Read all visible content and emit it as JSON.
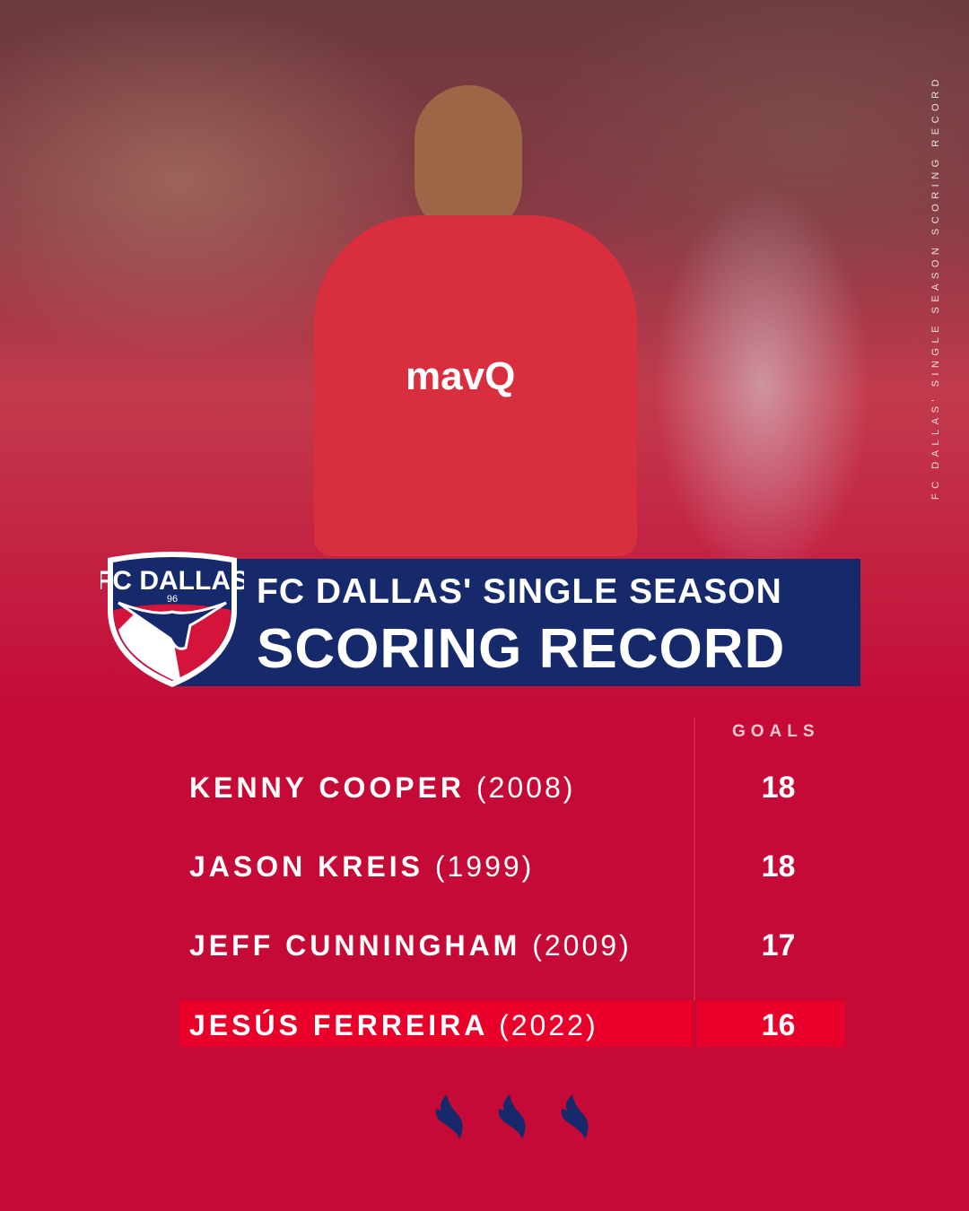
{
  "photo": {
    "sponsor": "mavQ"
  },
  "side_text": "FC DALLAS' SINGLE SEASON SCORING RECORD",
  "logo": {
    "text": "FC DALLAS",
    "year": "96"
  },
  "title": {
    "line1": "FC DALLAS' SINGLE SEASON",
    "line2": "SCORING RECORD"
  },
  "table": {
    "goals_header": "GOALS",
    "rows": [
      {
        "name": "KENNY COOPER",
        "year": "(2008)",
        "goals": "18"
      },
      {
        "name": "JASON KREIS",
        "year": "(1999)",
        "goals": "18"
      },
      {
        "name": "JEFF CUNNINGHAM",
        "year": "(2009)",
        "goals": "17"
      },
      {
        "name": "JESÚS FERREIRA",
        "year": "(2022)",
        "goals": "16",
        "highlighted": true
      }
    ]
  },
  "colors": {
    "background": "#c50a38",
    "navy": "#15296b",
    "highlight": "#e8002b"
  }
}
